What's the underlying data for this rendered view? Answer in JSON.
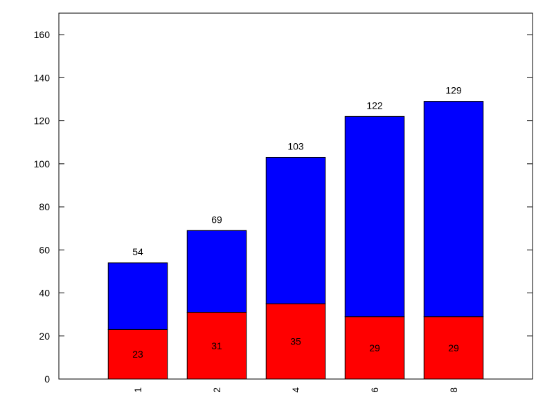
{
  "chart_data": {
    "type": "bar",
    "stacked": true,
    "categories": [
      "1",
      "2",
      "4",
      "6",
      "8"
    ],
    "series": [
      {
        "values": [
          23,
          31,
          35,
          29,
          29
        ],
        "color": "#ff0000"
      },
      {
        "values": [
          31,
          38,
          68,
          93,
          100
        ],
        "color": "#0000ff"
      }
    ],
    "totals": [
      54,
      69,
      103,
      122,
      129
    ],
    "ylim": [
      0,
      170
    ],
    "yticks": [
      0,
      20,
      40,
      60,
      80,
      100,
      120,
      140,
      160
    ],
    "title": "",
    "xlabel": "",
    "ylabel": "",
    "grid": false,
    "legend": "none",
    "x_tick_label_rotation": "vertical"
  }
}
